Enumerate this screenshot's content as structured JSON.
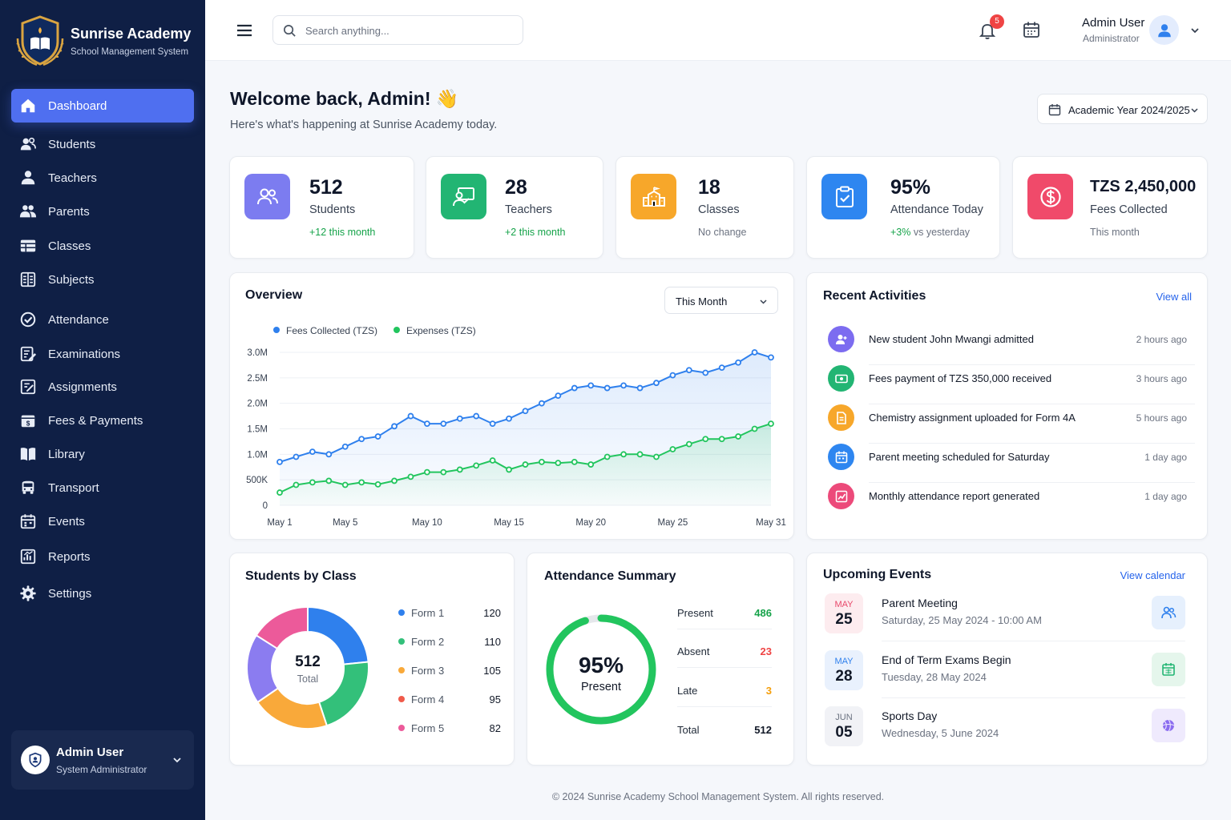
{
  "brand": {
    "title": "Sunrise Academy",
    "subtitle": "School Management System"
  },
  "sidebar": {
    "items": [
      {
        "label": "Dashboard",
        "icon": "home-icon",
        "active": true
      },
      {
        "label": "Students",
        "icon": "students-icon"
      },
      {
        "label": "Teachers",
        "icon": "teacher-icon"
      },
      {
        "label": "Parents",
        "icon": "parents-icon"
      },
      {
        "label": "Classes",
        "icon": "classes-icon"
      },
      {
        "label": "Subjects",
        "icon": "subjects-icon"
      },
      {
        "label": "Attendance",
        "icon": "attendance-check-icon"
      },
      {
        "label": "Examinations",
        "icon": "exam-icon"
      },
      {
        "label": "Assignments",
        "icon": "assignment-icon"
      },
      {
        "label": "Fees & Payments",
        "icon": "fees-icon"
      },
      {
        "label": "Library",
        "icon": "book-icon"
      },
      {
        "label": "Transport",
        "icon": "bus-icon"
      },
      {
        "label": "Events",
        "icon": "calendar-icon"
      },
      {
        "label": "Reports",
        "icon": "report-icon"
      },
      {
        "label": "Settings",
        "icon": "gear-icon"
      }
    ],
    "user": {
      "name": "Admin User",
      "role": "System Administrator"
    }
  },
  "topbar": {
    "search_placeholder": "Search anything...",
    "notification_count": "5",
    "user_name": "Admin User",
    "user_role": "Administrator"
  },
  "welcome": {
    "title": "Welcome back, Admin! 👋",
    "subtitle": "Here's what's happening at Sunrise Academy today."
  },
  "academic_year": "Academic Year 2024/2025",
  "stats": [
    {
      "value": "512",
      "label": "Students",
      "sub": "+12 this month",
      "color": "#7c7cf0",
      "sub_color": "#16a34a"
    },
    {
      "value": "28",
      "label": "Teachers",
      "sub": "+2 this month",
      "color": "#22b573",
      "sub_color": "#16a34a"
    },
    {
      "value": "18",
      "label": "Classes",
      "sub": "No change",
      "color": "#f7a72a",
      "sub_color": "#6b7280"
    },
    {
      "value": "95%",
      "label": "Attendance Today",
      "sub_strong": "+3%",
      "sub": "vs yesterday",
      "color": "#2e86f0",
      "sub_color": "#16a34a"
    },
    {
      "value": "TZS 2,450,000",
      "label": "Fees Collected",
      "sub": "This month",
      "color": "#f04a6a",
      "sub_color": "#6b7280"
    }
  ],
  "overview": {
    "title": "Overview",
    "range": "This Month"
  },
  "chart_data": {
    "type": "area",
    "x": [
      "May 1",
      "May 2",
      "May 3",
      "May 4",
      "May 5",
      "May 6",
      "May 7",
      "May 8",
      "May 9",
      "May 10",
      "May 11",
      "May 12",
      "May 13",
      "May 14",
      "May 15",
      "May 16",
      "May 17",
      "May 18",
      "May 19",
      "May 20",
      "May 21",
      "May 22",
      "May 23",
      "May 24",
      "May 25",
      "May 26",
      "May 27",
      "May 28",
      "May 29",
      "May 30",
      "May 31"
    ],
    "xticks": [
      "May 1",
      "May 5",
      "May 10",
      "May 15",
      "May 20",
      "May 25",
      "May 31"
    ],
    "yticks": [
      "0",
      "500K",
      "1.0M",
      "1.5M",
      "2.0M",
      "2.5M",
      "3.0M"
    ],
    "ylim": [
      0,
      3000000
    ],
    "series": [
      {
        "name": "Fees Collected (TZS)",
        "color": "#2f80ed",
        "values": [
          850000,
          950000,
          1050000,
          1000000,
          1150000,
          1300000,
          1350000,
          1550000,
          1750000,
          1600000,
          1600000,
          1700000,
          1750000,
          1600000,
          1700000,
          1850000,
          2000000,
          2150000,
          2300000,
          2350000,
          2300000,
          2350000,
          2300000,
          2400000,
          2550000,
          2650000,
          2600000,
          2700000,
          2800000,
          3000000,
          2900000
        ]
      },
      {
        "name": "Expenses (TZS)",
        "color": "#22c55e",
        "values": [
          250000,
          400000,
          450000,
          480000,
          400000,
          450000,
          410000,
          480000,
          560000,
          650000,
          650000,
          700000,
          780000,
          880000,
          700000,
          800000,
          850000,
          830000,
          850000,
          800000,
          950000,
          1000000,
          1000000,
          950000,
          1100000,
          1200000,
          1300000,
          1300000,
          1350000,
          1500000,
          1600000
        ]
      }
    ]
  },
  "activities": {
    "title": "Recent Activities",
    "link": "View all",
    "items": [
      {
        "text": "New student John Mwangi admitted",
        "time": "2 hours ago",
        "icon": "user-add-icon",
        "color": "#7c6cf0"
      },
      {
        "text": "Fees payment of TZS 350,000 received",
        "time": "3 hours ago",
        "icon": "money-icon",
        "color": "#22b573"
      },
      {
        "text": "Chemistry assignment uploaded for Form 4A",
        "time": "5 hours ago",
        "icon": "document-icon",
        "color": "#f7a72a"
      },
      {
        "text": "Parent meeting scheduled for Saturday",
        "time": "1 day ago",
        "icon": "calendar-icon",
        "color": "#2e86f0"
      },
      {
        "text": "Monthly attendance report generated",
        "time": "1 day ago",
        "icon": "chart-icon",
        "color": "#ec4a7a"
      }
    ]
  },
  "students_by_class": {
    "title": "Students by Class",
    "total": "512",
    "total_label": "Total",
    "items": [
      {
        "name": "Form 1",
        "count": 120,
        "color": "#2f80ed"
      },
      {
        "name": "Form 2",
        "count": 110,
        "color": "#33c07a"
      },
      {
        "name": "Form 3",
        "count": 105,
        "color": "#f9a93a"
      },
      {
        "name": "Form 4",
        "count": 95,
        "color": "#8b7cf0"
      },
      {
        "name": "Form 5",
        "count": 82,
        "color": "#ec5a9a"
      }
    ]
  },
  "attendance": {
    "title": "Attendance Summary",
    "percent": "95%",
    "percent_value": 0.95,
    "label": "Present",
    "items": [
      {
        "name": "Present",
        "count": "486",
        "color": "#16a34a"
      },
      {
        "name": "Absent",
        "count": "23",
        "color": "#ef4444"
      },
      {
        "name": "Late",
        "count": "3",
        "color": "#f59e0b"
      },
      {
        "name": "Total",
        "count": "512",
        "color": "#111827"
      }
    ]
  },
  "events": {
    "title": "Upcoming Events",
    "link": "View calendar",
    "items": [
      {
        "month": "MAY",
        "day": "25",
        "title": "Parent Meeting",
        "sub": "Saturday, 25 May 2024 - 10:00 AM",
        "month_color": "#e8486a",
        "bg": "#fdecef",
        "icon": "people-icon",
        "icon_color": "#2f80ed",
        "icon_bg": "#e6f0fd"
      },
      {
        "month": "MAY",
        "day": "28",
        "title": "End of Term Exams Begin",
        "sub": "Tuesday, 28 May 2024",
        "month_color": "#2f80ed",
        "bg": "#e9f1fd",
        "icon": "calendar-icon",
        "icon_color": "#22b573",
        "icon_bg": "#e5f6ec"
      },
      {
        "month": "JUN",
        "day": "05",
        "title": "Sports Day",
        "sub": "Wednesday, 5 June 2024",
        "month_color": "#6b7280",
        "bg": "#f1f2f6",
        "icon": "ball-icon",
        "icon_color": "#8b6cf0",
        "icon_bg": "#efeafd"
      }
    ]
  },
  "footer": "© 2024 Sunrise Academy School Management System. All rights reserved."
}
